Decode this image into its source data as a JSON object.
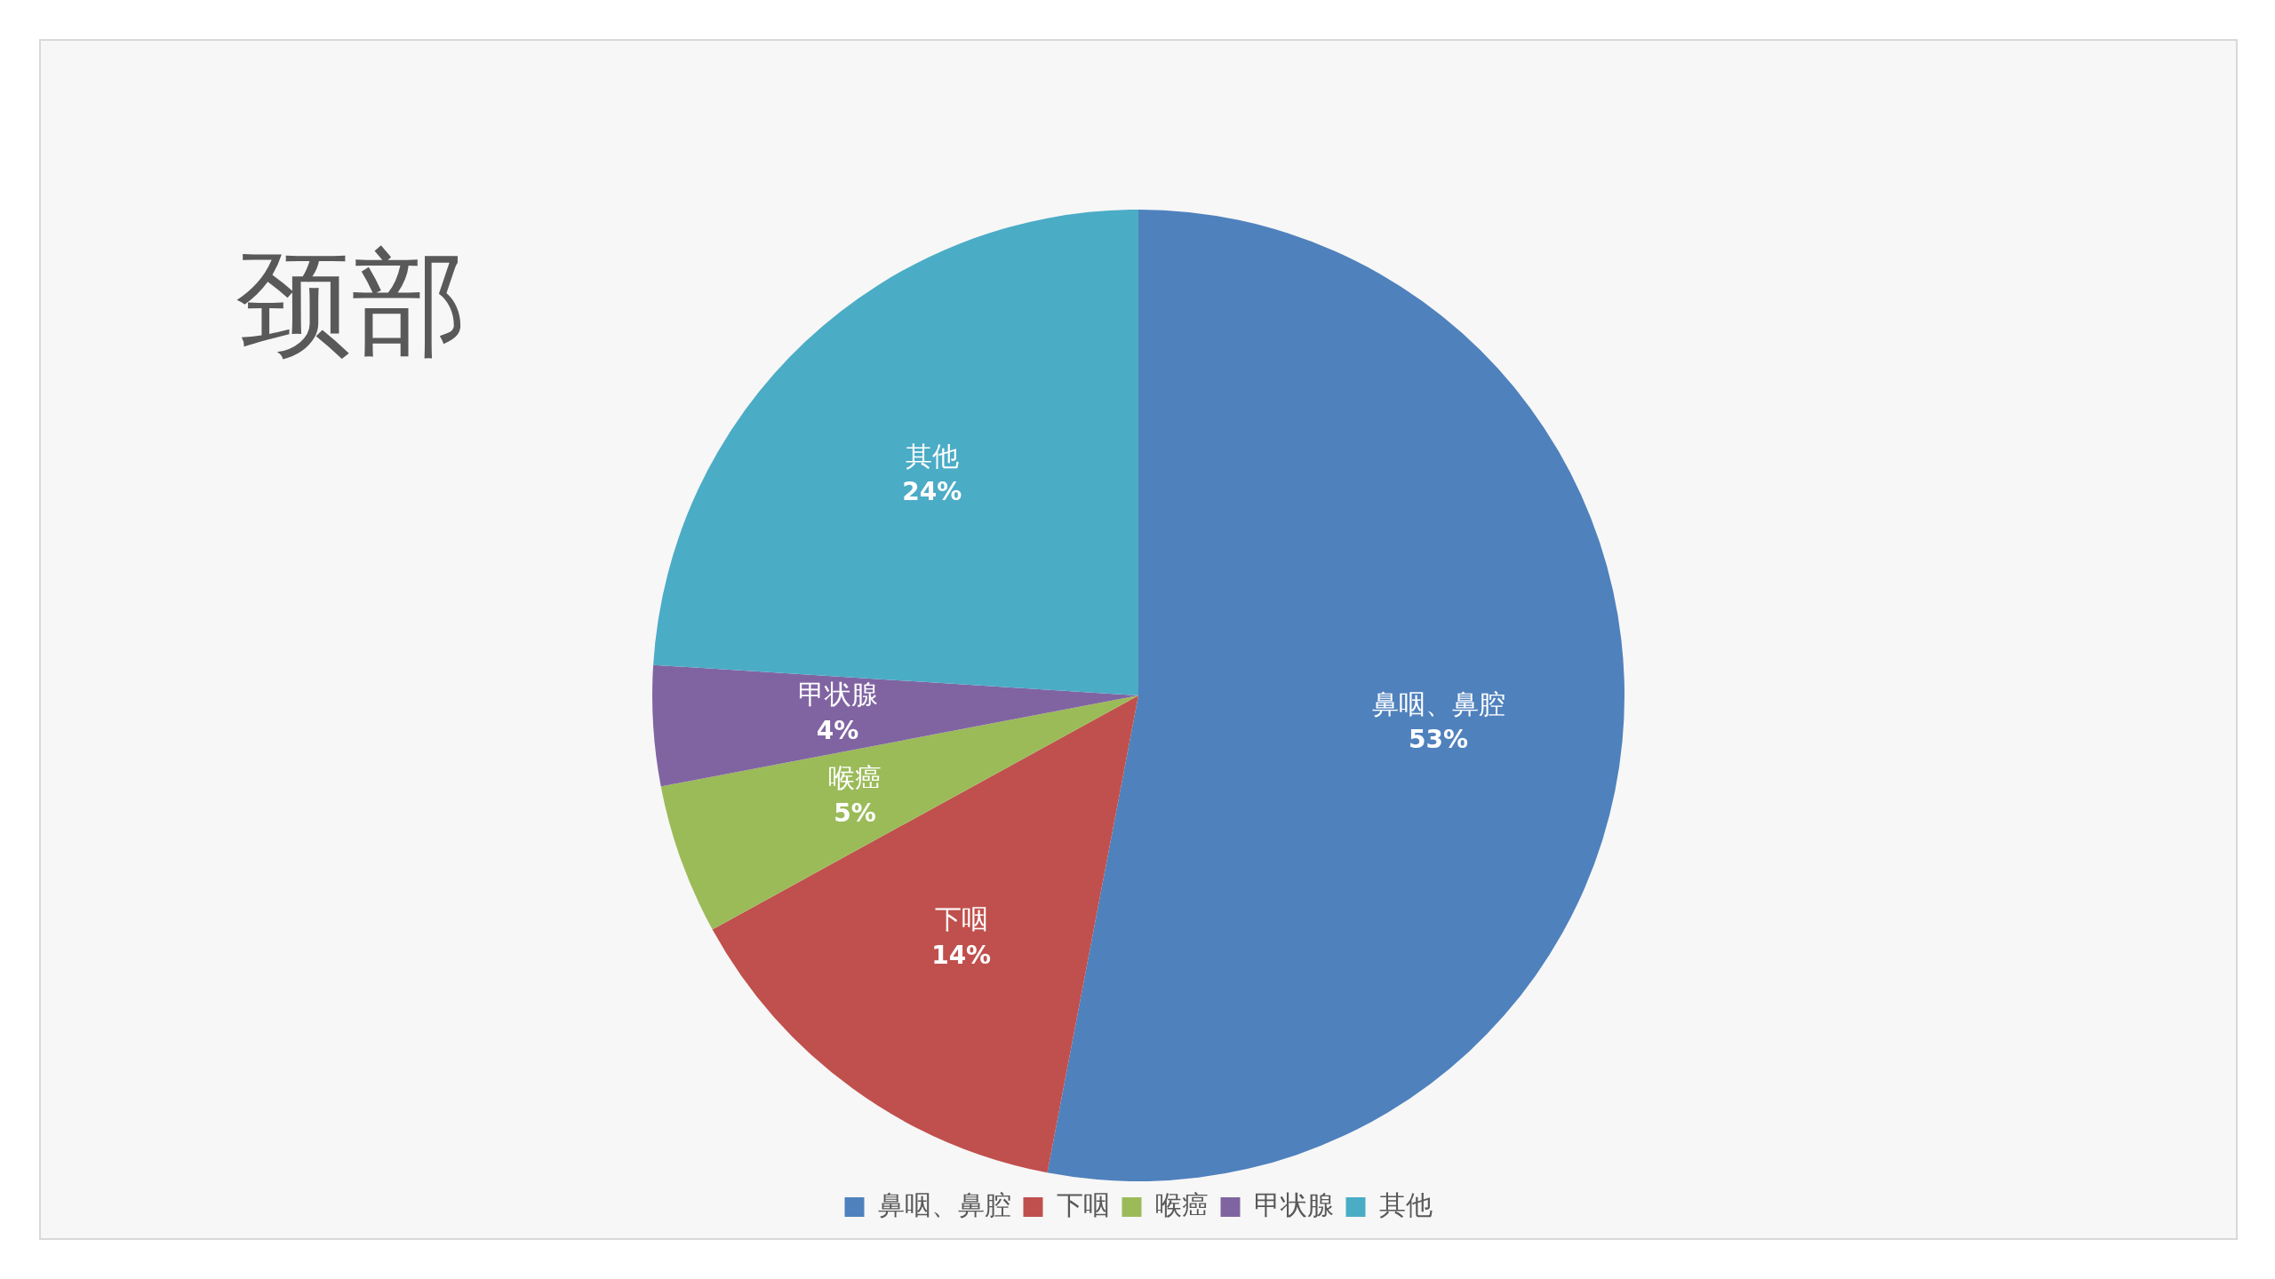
{
  "chart_data": {
    "type": "pie",
    "title": "颈部",
    "categories": [
      "鼻咽、鼻腔",
      "下咽",
      "喉癌",
      "甲状腺",
      "其他"
    ],
    "values": [
      53,
      14,
      5,
      4,
      24
    ],
    "colors": [
      "#4f81bd",
      "#c0504d",
      "#9bbb59",
      "#8064a2",
      "#4bacc6"
    ],
    "value_labels": [
      "53%",
      "14%",
      "5%",
      "4%",
      "24%"
    ],
    "legend": "bottom"
  }
}
